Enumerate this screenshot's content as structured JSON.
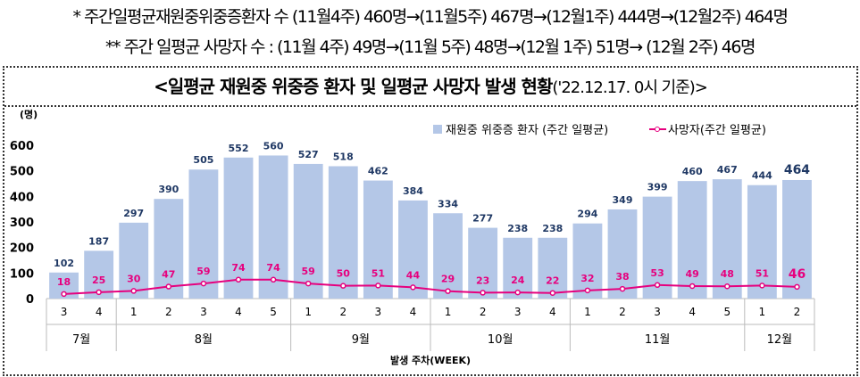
{
  "notes": {
    "line1": "*  주간일평균재원중위중증환자 수 (11월4주) 460명→(11월5주) 467명→(12월1주) 444명→(12월2주) 464명",
    "line2": "** 주간 일평균 사망자 수 : (11월 4주) 49명→(11월 5주) 48명→(12월 1주) 51명→ (12월 2주) 46명"
  },
  "chart_data": {
    "type": "bar+line",
    "title": "<일평균 재원중 위중증 환자 및 일평균 사망자 발생 현황",
    "title_sub": "('22.12.17. 0시 기준)>",
    "ylabel": "(명)",
    "xlabel": "발생 주차(WEEK)",
    "ylim": [
      0,
      600
    ],
    "yticks": [
      0,
      100,
      200,
      300,
      400,
      500,
      600
    ],
    "weeks": [
      "3",
      "4",
      "1",
      "2",
      "3",
      "4",
      "5",
      "1",
      "2",
      "3",
      "4",
      "1",
      "2",
      "3",
      "4",
      "1",
      "2",
      "3",
      "4",
      "5",
      "1",
      "2"
    ],
    "months": [
      {
        "label": "7월",
        "count": 2
      },
      {
        "label": "8월",
        "count": 5
      },
      {
        "label": "9월",
        "count": 4
      },
      {
        "label": "10월",
        "count": 4
      },
      {
        "label": "11월",
        "count": 5
      },
      {
        "label": "12월",
        "count": 2
      }
    ],
    "series": [
      {
        "name": "재원중 위중증 환자 (주간 일평균)",
        "type": "bar",
        "color": "#b4c7e7",
        "label_color": "#1f3864",
        "values": [
          102,
          187,
          297,
          390,
          505,
          552,
          560,
          527,
          518,
          462,
          384,
          334,
          277,
          238,
          238,
          294,
          349,
          399,
          460,
          467,
          444,
          464
        ]
      },
      {
        "name": "사망자(주간 일평균)",
        "type": "line",
        "color": "#e6007e",
        "values": [
          18,
          25,
          30,
          47,
          59,
          74,
          74,
          59,
          50,
          51,
          44,
          29,
          23,
          24,
          22,
          32,
          38,
          53,
          49,
          48,
          51,
          46
        ]
      }
    ]
  }
}
